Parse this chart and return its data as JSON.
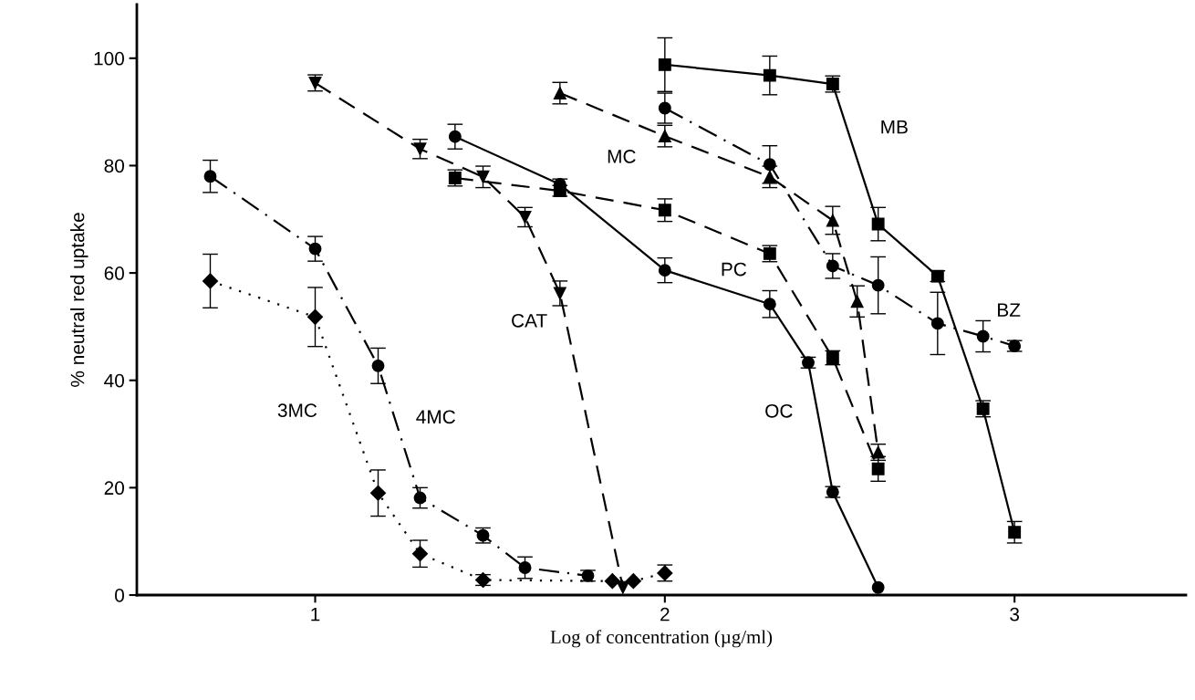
{
  "chart_data": {
    "type": "line",
    "xlabel": "Log of concentration (µg/ml)",
    "ylabel": "% neutral red uptake",
    "xlim": [
      0.49,
      3.49
    ],
    "ylim": [
      0,
      110
    ],
    "xticks": [
      1,
      2,
      3
    ],
    "yticks": [
      0,
      20,
      40,
      60,
      80,
      100
    ],
    "grid": false,
    "legend": false,
    "series": [
      {
        "name": "3MC",
        "color": "#000000",
        "marker": "diamond",
        "line_style": "dotted",
        "x": [
          0.7,
          1.0,
          1.18,
          1.3,
          1.48,
          1.85,
          1.91,
          2.0
        ],
        "values": [
          58.5,
          51.8,
          19.0,
          7.7,
          2.8,
          2.6,
          2.6,
          4.1
        ],
        "errors": [
          5,
          5.5,
          4.3,
          2.5,
          1,
          null,
          null,
          1.5
        ]
      },
      {
        "name": "4MC",
        "color": "#000000",
        "marker": "circle",
        "line_style": "dashdot",
        "x": [
          0.7,
          1.0,
          1.18,
          1.3,
          1.48,
          1.6,
          1.78
        ],
        "values": [
          78,
          64.5,
          42.7,
          18.1,
          11.1,
          5.1,
          3.6
        ],
        "errors": [
          3,
          2.3,
          3.3,
          1.9,
          1.4,
          2,
          1
        ]
      },
      {
        "name": "CAT",
        "color": "#000000",
        "marker": "triangle_down",
        "line_style": "dashed",
        "x": [
          1.0,
          1.3,
          1.48,
          1.6,
          1.7,
          1.88
        ],
        "values": [
          95.4,
          83.1,
          77.9,
          70.4,
          56.2,
          1.4
        ],
        "errors": [
          1.5,
          1.8,
          2,
          1.8,
          2.3,
          null
        ]
      },
      {
        "name": "PC",
        "color": "#000000",
        "marker": "square",
        "line_style": "dashed",
        "x": [
          1.4,
          1.7,
          2.0,
          2.3,
          2.48,
          2.61
        ],
        "values": [
          77.7,
          75.3,
          71.7,
          63.6,
          44.2,
          23.5
        ],
        "errors": [
          1.5,
          1,
          2.1,
          1.5,
          1.3,
          2.3
        ]
      },
      {
        "name": "OC",
        "color": "#000000",
        "marker": "circle",
        "line_style": "solid",
        "x": [
          1.4,
          1.7,
          2.0,
          2.3,
          2.41,
          2.48,
          2.61
        ],
        "values": [
          85.4,
          76.5,
          60.5,
          54.2,
          43.3,
          19.2,
          1.4
        ],
        "errors": [
          2.3,
          1,
          2.3,
          2.5,
          1,
          1,
          null
        ]
      },
      {
        "name": "MC",
        "color": "#000000",
        "marker": "triangle",
        "line_style": "dashed",
        "x": [
          1.7,
          2.0,
          2.3,
          2.48,
          2.55,
          2.61
        ],
        "values": [
          93.5,
          85.5,
          77.9,
          69.8,
          54.7,
          26.6
        ],
        "errors": [
          2,
          2,
          2,
          2.6,
          2.9,
          1.5
        ]
      },
      {
        "name": "BZ",
        "color": "#000000",
        "marker": "circle",
        "line_style": "dashdot",
        "x": [
          2.0,
          2.3,
          2.48,
          2.61,
          2.78,
          2.91,
          3.0
        ],
        "values": [
          90.7,
          80.2,
          61.3,
          57.7,
          50.6,
          48.2,
          46.4
        ],
        "errors": [
          2.8,
          3.5,
          2.3,
          5.3,
          5.8,
          2.9,
          1
        ]
      },
      {
        "name": "MB",
        "color": "#000000",
        "marker": "square",
        "line_style": "solid",
        "x": [
          2.0,
          2.3,
          2.48,
          2.61,
          2.78,
          2.91,
          3.0
        ],
        "values": [
          98.8,
          96.8,
          95.2,
          69.1,
          59.4,
          34.7,
          11.7
        ],
        "errors": [
          5,
          3.6,
          1.5,
          3.1,
          1,
          1.5,
          2
        ]
      }
    ]
  }
}
